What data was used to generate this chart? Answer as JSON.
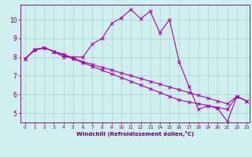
{
  "xlabel": "Windchill (Refroidissement éolien,°C)",
  "ylabel": "",
  "bg_color": "#d0f0f0",
  "line_color": "#aa00aa",
  "grid_color": "#b0d8d8",
  "axis_label_color": "#660066",
  "tick_color": "#660066",
  "xlim": [
    -0.5,
    23.3
  ],
  "ylim": [
    4.5,
    10.8
  ],
  "yticks": [
    5,
    6,
    7,
    8,
    9,
    10
  ],
  "xticks": [
    0,
    1,
    2,
    3,
    4,
    5,
    6,
    7,
    8,
    9,
    10,
    11,
    12,
    13,
    14,
    15,
    16,
    17,
    18,
    19,
    20,
    21,
    22,
    23
  ],
  "series1_x": [
    0,
    1,
    2,
    3,
    4,
    5,
    6,
    7,
    8,
    9,
    10,
    11,
    12,
    13,
    14,
    15,
    16,
    17,
    18,
    19,
    20,
    21,
    22,
    23
  ],
  "series1_y": [
    7.9,
    8.4,
    8.5,
    8.3,
    8.0,
    8.0,
    8.0,
    8.7,
    9.0,
    9.8,
    10.1,
    10.55,
    10.05,
    10.45,
    9.3,
    10.0,
    7.75,
    6.45,
    5.2,
    5.4,
    5.25,
    4.55,
    5.9,
    5.65
  ],
  "series2_x": [
    0,
    1,
    2,
    3,
    4,
    5,
    6,
    7,
    8,
    9,
    10,
    11,
    12,
    13,
    14,
    15,
    16,
    17,
    18,
    19,
    20,
    21,
    22,
    23
  ],
  "series2_y": [
    7.9,
    8.4,
    8.5,
    8.3,
    8.15,
    7.95,
    7.75,
    7.6,
    7.45,
    7.3,
    7.15,
    7.0,
    6.85,
    6.7,
    6.55,
    6.4,
    6.25,
    6.1,
    5.95,
    5.8,
    5.65,
    5.5,
    5.9,
    5.65
  ],
  "series3_x": [
    0,
    1,
    2,
    3,
    4,
    5,
    6,
    7,
    8,
    9,
    10,
    11,
    12,
    13,
    14,
    15,
    16,
    17,
    18,
    19,
    20,
    21,
    22,
    23
  ],
  "series3_y": [
    7.9,
    8.35,
    8.5,
    8.3,
    8.1,
    7.9,
    7.7,
    7.5,
    7.3,
    7.1,
    6.9,
    6.7,
    6.5,
    6.3,
    6.1,
    5.9,
    5.7,
    5.6,
    5.5,
    5.4,
    5.3,
    5.2,
    5.9,
    5.65
  ]
}
